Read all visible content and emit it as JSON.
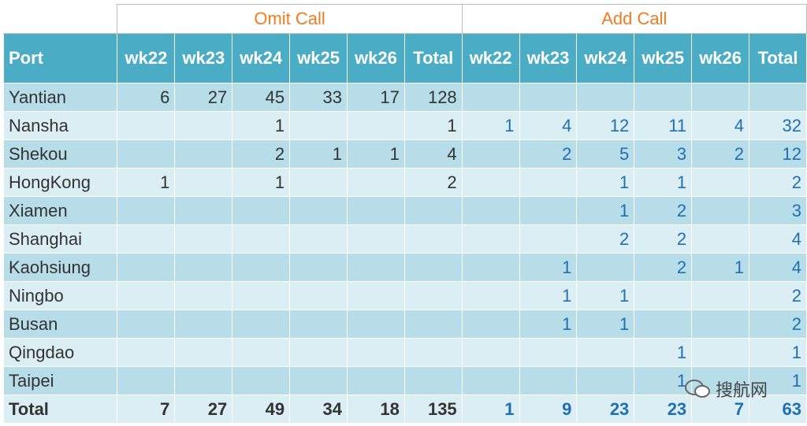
{
  "table": {
    "groups": [
      "Omit Call",
      "Add Call"
    ],
    "columns": [
      "Port",
      "wk22",
      "wk23",
      "wk24",
      "wk25",
      "wk26",
      "Total",
      "wk22",
      "wk23",
      "wk24",
      "wk25",
      "wk26",
      "Total"
    ],
    "rows": [
      {
        "port": "Yantian",
        "cells": [
          6,
          27,
          45,
          33,
          17,
          128,
          null,
          null,
          null,
          null,
          null,
          null
        ]
      },
      {
        "port": "Nansha",
        "cells": [
          null,
          null,
          1,
          null,
          null,
          1,
          1,
          4,
          12,
          11,
          4,
          32
        ]
      },
      {
        "port": "Shekou",
        "cells": [
          null,
          null,
          2,
          1,
          1,
          4,
          null,
          2,
          5,
          3,
          2,
          12
        ]
      },
      {
        "port": "HongKong",
        "cells": [
          1,
          null,
          1,
          null,
          null,
          2,
          null,
          null,
          1,
          1,
          null,
          2
        ]
      },
      {
        "port": "Xiamen",
        "cells": [
          null,
          null,
          null,
          null,
          null,
          null,
          null,
          null,
          1,
          2,
          null,
          3
        ]
      },
      {
        "port": "Shanghai",
        "cells": [
          null,
          null,
          null,
          null,
          null,
          null,
          null,
          null,
          2,
          2,
          null,
          4
        ]
      },
      {
        "port": "Kaohsiung",
        "cells": [
          null,
          null,
          null,
          null,
          null,
          null,
          null,
          1,
          null,
          2,
          1,
          4
        ]
      },
      {
        "port": "Ningbo",
        "cells": [
          null,
          null,
          null,
          null,
          null,
          null,
          null,
          1,
          1,
          null,
          null,
          2
        ]
      },
      {
        "port": "Busan",
        "cells": [
          null,
          null,
          null,
          null,
          null,
          null,
          null,
          1,
          1,
          null,
          null,
          2
        ]
      },
      {
        "port": "Qingdao",
        "cells": [
          null,
          null,
          null,
          null,
          null,
          null,
          null,
          null,
          null,
          1,
          null,
          1
        ]
      },
      {
        "port": "Taipei",
        "cells": [
          null,
          null,
          null,
          null,
          null,
          null,
          null,
          null,
          null,
          1,
          null,
          1
        ]
      }
    ],
    "total": {
      "label": "Total",
      "cells": [
        7,
        27,
        49,
        34,
        18,
        135,
        1,
        9,
        23,
        23,
        7,
        63
      ]
    }
  },
  "watermark": "搜航网"
}
